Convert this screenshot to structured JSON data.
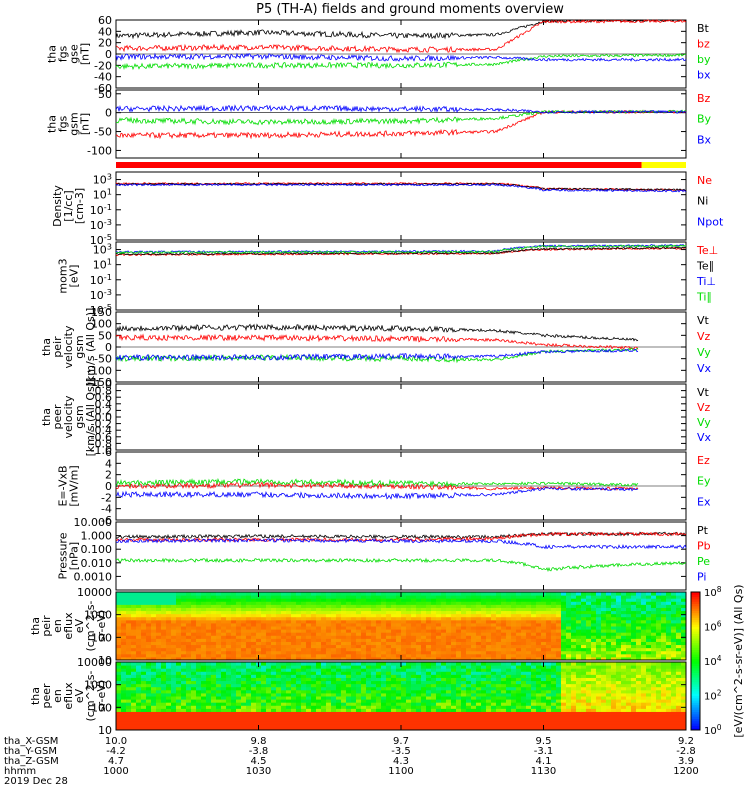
{
  "title": "P5 (TH-A) fields and ground moments overview",
  "date_label": "2019 Dec 28",
  "colorbar_unit": "[eV/(cm^2-s-sr-eV)] (All Qs)",
  "colorbar_ticks": [
    "10^0",
    "10^2",
    "10^4",
    "10^6",
    "10^8"
  ],
  "quality_bar": {
    "colors": [
      "#ff0000",
      "#ffff00"
    ],
    "fractions": [
      0.922,
      0.078
    ]
  },
  "orbit_labels": {
    "rows": [
      {
        "name": "tha_X-GSM",
        "values": [
          "10.0",
          "9.8",
          "9.7",
          "9.5",
          "9.2"
        ]
      },
      {
        "name": "tha_Y-GSM",
        "values": [
          "-4.2",
          "-3.8",
          "-3.5",
          "-3.1",
          "-2.8"
        ]
      },
      {
        "name": "tha_Z-GSM",
        "values": [
          "4.7",
          "4.5",
          "4.3",
          "4.1",
          "3.9"
        ]
      },
      {
        "name": "hhmm",
        "values": [
          "1000",
          "1030",
          "1100",
          "1130",
          "1200"
        ]
      }
    ]
  },
  "chart_data": [
    {
      "id": "fgs_gse",
      "type": "line",
      "ylabel_lines": [
        "tha",
        "fgs",
        "gse",
        "[nT]"
      ],
      "ylim": [
        -60,
        60
      ],
      "yticks": [
        -60,
        -40,
        -20,
        0,
        20,
        40,
        60
      ],
      "ytick_labels": [
        "-60",
        "-40",
        "-20",
        "0",
        "20",
        "40",
        "60"
      ],
      "zero_line": true,
      "x": [
        "10:00",
        "10:30",
        "11:00",
        "11:20",
        "11:30",
        "12:00"
      ],
      "series": [
        {
          "name": "Bt",
          "color": "#000000",
          "values": [
            32,
            38,
            32,
            34,
            58,
            60
          ]
        },
        {
          "name": "bz",
          "color": "#ff0000",
          "values": [
            10,
            12,
            8,
            8,
            57,
            58
          ]
        },
        {
          "name": "by",
          "color": "#00dd00",
          "values": [
            -22,
            -20,
            -20,
            -18,
            -4,
            -2
          ]
        },
        {
          "name": "bx",
          "color": "#0000ff",
          "values": [
            -5,
            -4,
            -8,
            -6,
            -10,
            -10
          ]
        }
      ]
    },
    {
      "id": "fgs_gsm",
      "type": "line",
      "ylabel_lines": [
        "tha",
        "fgs",
        "gsm",
        "[nT]"
      ],
      "ylim": [
        -120,
        60
      ],
      "yticks": [
        -100,
        -50,
        0,
        50
      ],
      "ytick_labels": [
        "-100",
        "-50",
        "0",
        "50"
      ],
      "zero_line": true,
      "x": [
        "10:00",
        "10:30",
        "11:00",
        "11:20",
        "11:30",
        "12:00"
      ],
      "series": [
        {
          "name": "Bz",
          "color": "#ff0000",
          "values": [
            -60,
            -60,
            -55,
            -50,
            2,
            2
          ]
        },
        {
          "name": "By",
          "color": "#00dd00",
          "values": [
            -20,
            -25,
            -22,
            -15,
            2,
            3
          ]
        },
        {
          "name": "Bx",
          "color": "#0000ff",
          "values": [
            10,
            12,
            10,
            8,
            2,
            2
          ]
        }
      ]
    },
    {
      "id": "density",
      "type": "line",
      "log": true,
      "ylabel_lines": [
        "Density",
        "[1/cc]",
        "[cm-3]"
      ],
      "ylim": [
        1e-05,
        10000
      ],
      "yticks": [
        1e-05,
        0.001,
        0.1,
        10,
        1000
      ],
      "ytick_labels": [
        "10^-5",
        "10^-3",
        "10^-1",
        "10^1",
        "10^3"
      ],
      "x": [
        "10:00",
        "11:20",
        "11:30",
        "12:00"
      ],
      "series": [
        {
          "name": "Ne",
          "color": "#ff0000",
          "values": [
            300,
            300,
            60,
            40
          ]
        },
        {
          "name": "Ni",
          "color": "#000000",
          "values": [
            250,
            250,
            60,
            45
          ]
        },
        {
          "name": "Npot",
          "color": "#0000ff",
          "values": [
            200,
            200,
            40,
            30
          ]
        }
      ]
    },
    {
      "id": "temperature",
      "type": "line",
      "log": true,
      "ylabel_lines": [
        "mom3",
        "[eV]"
      ],
      "ylim": [
        1e-05,
        10000
      ],
      "yticks": [
        1e-05,
        0.001,
        0.1,
        10,
        1000
      ],
      "ytick_labels": [
        "10^-5",
        "10^-3",
        "10^-1",
        "10^1",
        "10^3"
      ],
      "x": [
        "10:00",
        "11:20",
        "11:30",
        "12:00"
      ],
      "series": [
        {
          "name": "Te⊥",
          "color": "#ff0000",
          "values": [
            200,
            300,
            1000,
            1500
          ]
        },
        {
          "name": "Te∥",
          "color": "#000000",
          "values": [
            250,
            350,
            1200,
            1800
          ]
        },
        {
          "name": "Ti⊥",
          "color": "#0000ff",
          "values": [
            500,
            600,
            3000,
            3500
          ]
        },
        {
          "name": "Ti∥",
          "color": "#00dd00",
          "values": [
            400,
            500,
            2500,
            3000
          ]
        }
      ]
    },
    {
      "id": "peir_velocity",
      "type": "line",
      "ylabel_lines": [
        "tha",
        "peir",
        "velocity",
        "gsm",
        "[km/s (All Qs)]"
      ],
      "ylim": [
        -150,
        150
      ],
      "yticks": [
        -150,
        -100,
        -50,
        0,
        50,
        100,
        150
      ],
      "ytick_labels": [
        "-150",
        "-100",
        "-50",
        "0",
        "50",
        "100",
        "150"
      ],
      "zero_line": true,
      "x": [
        "10:00",
        "10:30",
        "11:00",
        "11:20",
        "11:30",
        "11:50"
      ],
      "series": [
        {
          "name": "Vt",
          "color": "#000000",
          "values": [
            80,
            85,
            80,
            70,
            50,
            30
          ]
        },
        {
          "name": "Vz",
          "color": "#ff0000",
          "values": [
            40,
            40,
            35,
            30,
            10,
            -5
          ]
        },
        {
          "name": "Vy",
          "color": "#00dd00",
          "values": [
            -50,
            -45,
            -50,
            -55,
            -20,
            -10
          ]
        },
        {
          "name": "Vx",
          "color": "#0000ff",
          "values": [
            -45,
            -45,
            -40,
            -40,
            -20,
            -15
          ]
        }
      ]
    },
    {
      "id": "peer_velocity",
      "type": "line",
      "ylabel_lines": [
        "tha",
        "peer",
        "velocity",
        "gsm",
        "[km/s (All Qs)]"
      ],
      "ylim": [
        -1,
        1
      ],
      "yticks": [
        -1,
        -0.8,
        -0.6,
        -0.4,
        -0.2,
        0,
        0.2,
        0.4,
        0.6,
        0.8,
        1
      ],
      "ytick_labels": [
        "-1.0",
        "-0.8",
        "-0.6",
        "-0.4",
        "-0.2",
        "0.0",
        "0.2",
        "0.4",
        "0.6",
        "0.8",
        "1.0"
      ],
      "x": [],
      "series": [
        {
          "name": "Vt",
          "color": "#000000",
          "values": []
        },
        {
          "name": "Vz",
          "color": "#ff0000",
          "values": []
        },
        {
          "name": "Vy",
          "color": "#00dd00",
          "values": []
        },
        {
          "name": "Vx",
          "color": "#0000ff",
          "values": []
        }
      ]
    },
    {
      "id": "efield",
      "type": "line",
      "ylabel_lines": [
        "E=-VxB",
        "[mV/m]"
      ],
      "ylim": [
        -6,
        6
      ],
      "yticks": [
        -6,
        -4,
        -2,
        0,
        2,
        4,
        6
      ],
      "ytick_labels": [
        "-6",
        "-4",
        "-2",
        "0",
        "2",
        "4",
        "6"
      ],
      "zero_line": true,
      "x": [
        "10:00",
        "10:30",
        "11:00",
        "11:20",
        "11:30",
        "11:50"
      ],
      "series": [
        {
          "name": "Ez",
          "color": "#ff0000",
          "values": [
            0,
            0.2,
            0,
            -0.5,
            -0.3,
            -0.5
          ]
        },
        {
          "name": "Ey",
          "color": "#00dd00",
          "values": [
            0.5,
            0.8,
            0.5,
            0.4,
            0.5,
            0.2
          ]
        },
        {
          "name": "Ex",
          "color": "#0000ff",
          "values": [
            -1.5,
            -1.5,
            -1.8,
            -1.5,
            -0.5,
            -0.6
          ]
        }
      ]
    },
    {
      "id": "pressure",
      "type": "line",
      "log": true,
      "ylabel_lines": [
        "Pressure",
        "[nPa]"
      ],
      "ylim": [
        0.0001,
        10
      ],
      "yticks": [
        0.001,
        0.01,
        0.1,
        1,
        10
      ],
      "ytick_labels": [
        "0.0010",
        "0.010",
        "0.100",
        "1.000",
        "10.000"
      ],
      "x": [
        "10:00",
        "10:30",
        "11:00",
        "11:20",
        "11:30",
        "12:00"
      ],
      "series": [
        {
          "name": "Pt",
          "color": "#000000",
          "values": [
            0.8,
            0.9,
            0.8,
            0.8,
            1.3,
            1.4
          ]
        },
        {
          "name": "Pb",
          "color": "#ff0000",
          "values": [
            0.5,
            0.5,
            0.5,
            0.6,
            1.3,
            1.3
          ]
        },
        {
          "name": "Pe",
          "color": "#00dd00",
          "values": [
            0.015,
            0.015,
            0.015,
            0.015,
            0.003,
            0.01
          ]
        },
        {
          "name": "Pi",
          "color": "#0000ff",
          "values": [
            0.4,
            0.45,
            0.4,
            0.4,
            0.15,
            0.15
          ]
        }
      ]
    },
    {
      "id": "peir_eflux",
      "type": "heatmap",
      "log": true,
      "ylabel_lines": [
        "tha",
        "peir",
        "en",
        "eflux",
        "eV",
        "(cm^2-s-",
        "sr-eV)"
      ],
      "ylim": [
        10,
        10000
      ],
      "yticks": [
        10,
        100,
        1000,
        10000
      ],
      "ytick_labels": [
        "10",
        "100",
        "1000",
        "10000"
      ],
      "note": "ion energy flux spectrogram; high flux at low-mid energies before 11:20, patchier after"
    },
    {
      "id": "peer_eflux",
      "type": "heatmap",
      "log": true,
      "ylabel_lines": [
        "tha",
        "peer",
        "en",
        "eflux",
        "eV",
        "(cm^2-s-",
        "sr-eV)"
      ],
      "ylim": [
        10,
        10000
      ],
      "yticks": [
        10,
        100,
        1000,
        10000
      ],
      "ytick_labels": [
        "10",
        "100",
        "1000",
        "10000"
      ],
      "note": "electron energy flux spectrogram; intense low energy band, higher-energy fluxes after 11:20"
    }
  ]
}
